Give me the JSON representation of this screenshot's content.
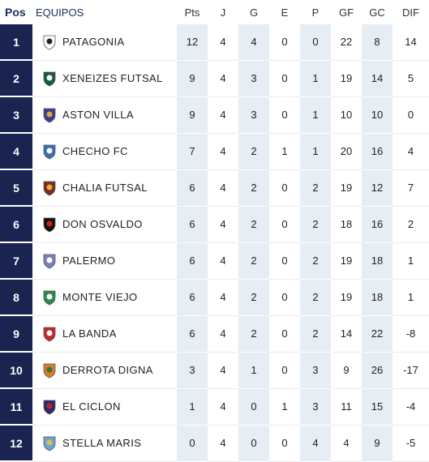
{
  "header": {
    "pos": "Pos",
    "team": "EQUIPOS",
    "pts": "Pts",
    "j": "J",
    "g": "G",
    "e": "E",
    "p": "P",
    "gf": "GF",
    "gc": "GC",
    "dif": "DIF"
  },
  "rows": [
    {
      "pos": "1",
      "team": "PATAGONIA",
      "pts": "12",
      "j": "4",
      "g": "4",
      "e": "0",
      "p": "0",
      "gf": "22",
      "gc": "8",
      "dif": "14",
      "crest": "#ffffff",
      "crest2": "#222222",
      "icon": "patagonia-crest-icon"
    },
    {
      "pos": "2",
      "team": "XENEIZES FUTSAL",
      "pts": "9",
      "j": "4",
      "g": "3",
      "e": "0",
      "p": "1",
      "gf": "19",
      "gc": "14",
      "dif": "5",
      "crest": "#1a5a3a",
      "crest2": "#ffffff",
      "icon": "xeneizes-crest-icon"
    },
    {
      "pos": "3",
      "team": "ASTON VILLA",
      "pts": "9",
      "j": "4",
      "g": "3",
      "e": "0",
      "p": "1",
      "gf": "10",
      "gc": "10",
      "dif": "0",
      "crest": "#3b3f9a",
      "crest2": "#e8a33a",
      "icon": "aston-villa-crest-icon"
    },
    {
      "pos": "4",
      "team": "CHECHO FC",
      "pts": "7",
      "j": "4",
      "g": "2",
      "e": "1",
      "p": "1",
      "gf": "20",
      "gc": "16",
      "dif": "4",
      "crest": "#3a6fb5",
      "crest2": "#ffffff",
      "icon": "checho-crest-icon"
    },
    {
      "pos": "5",
      "team": "CHALIA FUTSAL",
      "pts": "6",
      "j": "4",
      "g": "2",
      "e": "0",
      "p": "2",
      "gf": "19",
      "gc": "12",
      "dif": "7",
      "crest": "#7a2e1f",
      "crest2": "#e0b040",
      "icon": "chalia-crest-icon"
    },
    {
      "pos": "6",
      "team": "DON OSVALDO",
      "pts": "6",
      "j": "4",
      "g": "2",
      "e": "0",
      "p": "2",
      "gf": "18",
      "gc": "16",
      "dif": "2",
      "crest": "#111111",
      "crest2": "#d02020",
      "icon": "don-osvaldo-crest-icon"
    },
    {
      "pos": "7",
      "team": "PALERMO",
      "pts": "6",
      "j": "4",
      "g": "2",
      "e": "0",
      "p": "2",
      "gf": "19",
      "gc": "18",
      "dif": "1",
      "crest": "#7b7ec0",
      "crest2": "#ffffff",
      "icon": "palermo-crest-icon"
    },
    {
      "pos": "8",
      "team": "MONTE VIEJO",
      "pts": "6",
      "j": "4",
      "g": "2",
      "e": "0",
      "p": "2",
      "gf": "19",
      "gc": "18",
      "dif": "1",
      "crest": "#2a8a4a",
      "crest2": "#ffffff",
      "icon": "monte-viejo-crest-icon"
    },
    {
      "pos": "9",
      "team": "LA BANDA",
      "pts": "6",
      "j": "4",
      "g": "2",
      "e": "0",
      "p": "2",
      "gf": "14",
      "gc": "22",
      "dif": "-8",
      "crest": "#c62828",
      "crest2": "#ffffff",
      "icon": "la-banda-crest-icon"
    },
    {
      "pos": "10",
      "team": "DERROTA DIGNA",
      "pts": "3",
      "j": "4",
      "g": "1",
      "e": "0",
      "p": "3",
      "gf": "9",
      "gc": "26",
      "dif": "-17",
      "crest": "#e07a2a",
      "crest2": "#2a7a3a",
      "icon": "derrota-digna-crest-icon"
    },
    {
      "pos": "11",
      "team": "EL CICLON",
      "pts": "1",
      "j": "4",
      "g": "0",
      "e": "1",
      "p": "3",
      "gf": "11",
      "gc": "15",
      "dif": "-4",
      "crest": "#2a2a6a",
      "crest2": "#c02030",
      "icon": "el-ciclon-crest-icon"
    },
    {
      "pos": "12",
      "team": "STELLA MARIS",
      "pts": "0",
      "j": "4",
      "g": "0",
      "e": "0",
      "p": "4",
      "gf": "4",
      "gc": "9",
      "dif": "-5",
      "crest": "#6aa3d8",
      "crest2": "#e0c040",
      "icon": "stella-maris-crest-icon"
    }
  ]
}
